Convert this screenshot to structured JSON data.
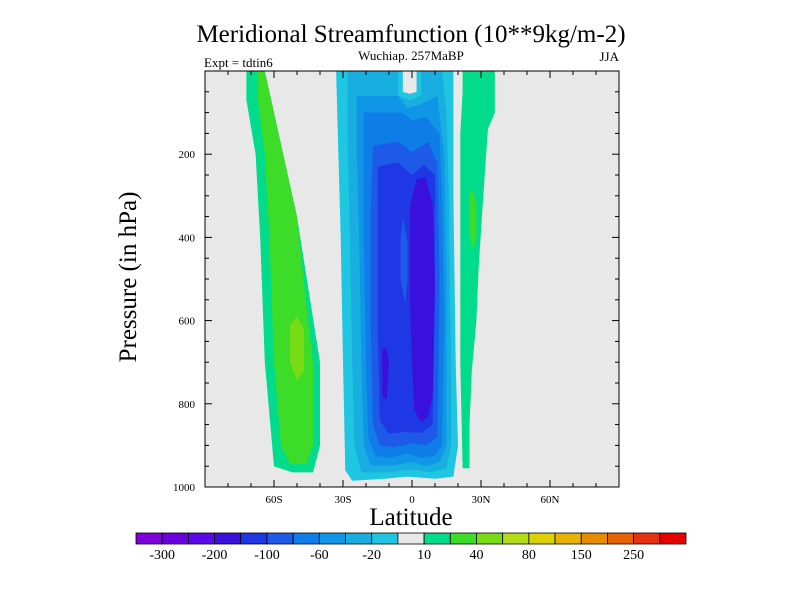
{
  "chart_data": {
    "type": "heatmap",
    "title": "Meridional Streamfunction (10**9kg/m-2)",
    "subtitle": "Wuchiap. 257MaBP",
    "left_annotation": "Expt = tdtin6",
    "right_annotation": "JJA",
    "xlabel": "Latitude",
    "ylabel": "Pressure (in hPa)",
    "xlim": [
      -90,
      90
    ],
    "ylim": [
      0,
      1000
    ],
    "y_inverted": true,
    "x_ticks": [
      {
        "value": -60,
        "label": "60S"
      },
      {
        "value": -30,
        "label": "30S"
      },
      {
        "value": 0,
        "label": "0"
      },
      {
        "value": 30,
        "label": "30N"
      },
      {
        "value": 60,
        "label": "60N"
      }
    ],
    "y_ticks": [
      {
        "value": 200,
        "label": "200"
      },
      {
        "value": 400,
        "label": "400"
      },
      {
        "value": 600,
        "label": "600"
      },
      {
        "value": 800,
        "label": "800"
      },
      {
        "value": 1000,
        "label": "1000"
      }
    ],
    "colorbar": {
      "colors": [
        "#7d00d8",
        "#6a00e0",
        "#5a0ae6",
        "#3a10dc",
        "#1f38e6",
        "#1e5ae8",
        "#0f7de8",
        "#0f96e6",
        "#18aee0",
        "#1ec6e2",
        "#e8e8e8",
        "#00dc8c",
        "#3cdc28",
        "#78dc14",
        "#b4dc14",
        "#dcd200",
        "#e6b400",
        "#e68c00",
        "#e66400",
        "#e63214",
        "#e60000"
      ],
      "labels": [
        {
          "after_index": 0,
          "text": "-300"
        },
        {
          "after_index": 2,
          "text": "-200"
        },
        {
          "after_index": 4,
          "text": "-100"
        },
        {
          "after_index": 6,
          "text": "-60"
        },
        {
          "after_index": 8,
          "text": "-20"
        },
        {
          "after_index": 10,
          "text": "10"
        },
        {
          "after_index": 12,
          "text": "40"
        },
        {
          "after_index": 14,
          "text": "80"
        },
        {
          "after_index": 16,
          "text": "150"
        },
        {
          "after_index": 18,
          "text": "250"
        }
      ]
    },
    "background_color": "#e8e8e8",
    "regions": [
      {
        "name": "sh-cell-outer",
        "color": "#00dc8c",
        "points": [
          [
            -72,
            0
          ],
          [
            -68,
            0
          ],
          [
            -64,
            0
          ],
          [
            -58,
            150
          ],
          [
            -50,
            350
          ],
          [
            -44,
            560
          ],
          [
            -40,
            700
          ],
          [
            -40,
            900
          ],
          [
            -43,
            965
          ],
          [
            -52,
            965
          ],
          [
            -60,
            950
          ],
          [
            -64,
            700
          ],
          [
            -66,
            400
          ],
          [
            -68,
            200
          ],
          [
            -72,
            70
          ]
        ]
      },
      {
        "name": "sh-cell-inner",
        "color": "#3cdc28",
        "points": [
          [
            -67,
            0
          ],
          [
            -64,
            0
          ],
          [
            -58,
            150
          ],
          [
            -50,
            350
          ],
          [
            -46,
            560
          ],
          [
            -43,
            700
          ],
          [
            -43,
            900
          ],
          [
            -46,
            945
          ],
          [
            -53,
            945
          ],
          [
            -57,
            900
          ],
          [
            -60,
            700
          ],
          [
            -62,
            400
          ],
          [
            -64,
            200
          ],
          [
            -67,
            70
          ]
        ]
      },
      {
        "name": "sh-cell-core",
        "color": "#78dc14",
        "points": [
          [
            -50,
            590
          ],
          [
            -47,
            620
          ],
          [
            -47,
            720
          ],
          [
            -50,
            745
          ],
          [
            -53,
            700
          ],
          [
            -53,
            610
          ]
        ]
      },
      {
        "name": "hadley-1",
        "color": "#1ec6e2",
        "points": [
          [
            -33,
            0
          ],
          [
            -4,
            0
          ],
          [
            -4,
            50
          ],
          [
            -1,
            55
          ],
          [
            2,
            50
          ],
          [
            2,
            0
          ],
          [
            18,
            0
          ],
          [
            18,
            300
          ],
          [
            19,
            700
          ],
          [
            20,
            900
          ],
          [
            18,
            975
          ],
          [
            10,
            980
          ],
          [
            -2,
            975
          ],
          [
            -12,
            980
          ],
          [
            -26,
            985
          ],
          [
            -29,
            960
          ],
          [
            -30,
            700
          ],
          [
            -31,
            400
          ],
          [
            -32,
            200
          ]
        ]
      },
      {
        "name": "hadley-2",
        "color": "#18aee0",
        "points": [
          [
            -28,
            0
          ],
          [
            -6,
            0
          ],
          [
            -6,
            60
          ],
          [
            -1,
            70
          ],
          [
            4,
            60
          ],
          [
            4,
            0
          ],
          [
            13,
            0
          ],
          [
            15,
            100
          ],
          [
            16,
            300
          ],
          [
            17,
            700
          ],
          [
            17,
            900
          ],
          [
            15,
            955
          ],
          [
            8,
            965
          ],
          [
            0,
            958
          ],
          [
            -10,
            965
          ],
          [
            -22,
            965
          ],
          [
            -25,
            900
          ],
          [
            -26,
            700
          ],
          [
            -27,
            400
          ],
          [
            -28,
            150
          ]
        ]
      },
      {
        "name": "hadley-3",
        "color": "#0f96e6",
        "points": [
          [
            -24,
            60
          ],
          [
            -6,
            60
          ],
          [
            -2,
            90
          ],
          [
            4,
            80
          ],
          [
            11,
            60
          ],
          [
            14,
            200
          ],
          [
            15,
            500
          ],
          [
            15,
            900
          ],
          [
            12,
            940
          ],
          [
            6,
            950
          ],
          [
            0,
            940
          ],
          [
            -8,
            948
          ],
          [
            -18,
            948
          ],
          [
            -21,
            900
          ],
          [
            -22,
            700
          ],
          [
            -23,
            400
          ],
          [
            -24,
            200
          ]
        ]
      },
      {
        "name": "hadley-4",
        "color": "#0f7de8",
        "points": [
          [
            -21,
            100
          ],
          [
            -4,
            100
          ],
          [
            0,
            120
          ],
          [
            6,
            110
          ],
          [
            12,
            150
          ],
          [
            13,
            300
          ],
          [
            14,
            600
          ],
          [
            13,
            900
          ],
          [
            10,
            925
          ],
          [
            4,
            930
          ],
          [
            -2,
            920
          ],
          [
            -10,
            930
          ],
          [
            -16,
            925
          ],
          [
            -19,
            880
          ],
          [
            -20,
            700
          ],
          [
            -21,
            400
          ]
        ]
      },
      {
        "name": "hadley-5",
        "color": "#1e5ae8",
        "points": [
          [
            -17,
            180
          ],
          [
            -6,
            170
          ],
          [
            0,
            195
          ],
          [
            7,
            170
          ],
          [
            11,
            220
          ],
          [
            12,
            500
          ],
          [
            11,
            880
          ],
          [
            6,
            900
          ],
          [
            0,
            895
          ],
          [
            -8,
            905
          ],
          [
            -14,
            900
          ],
          [
            -17,
            850
          ],
          [
            -18,
            600
          ],
          [
            -18,
            350
          ]
        ]
      },
      {
        "name": "hadley-6",
        "color": "#1f38e6",
        "points": [
          [
            -15,
            230
          ],
          [
            -6,
            220
          ],
          [
            0,
            250
          ],
          [
            5,
            225
          ],
          [
            10,
            250
          ],
          [
            10,
            500
          ],
          [
            9,
            850
          ],
          [
            4,
            870
          ],
          [
            -4,
            868
          ],
          [
            -10,
            872
          ],
          [
            -14,
            840
          ],
          [
            -15,
            600
          ]
        ]
      },
      {
        "name": "hadley-7",
        "color": "#3a10dc",
        "points": [
          [
            -1,
            330
          ],
          [
            2,
            260
          ],
          [
            6,
            255
          ],
          [
            9,
            320
          ],
          [
            10,
            520
          ],
          [
            9,
            780
          ],
          [
            7,
            830
          ],
          [
            4,
            845
          ],
          [
            1,
            815
          ],
          [
            0,
            700
          ],
          [
            -1,
            520
          ]
        ]
      },
      {
        "name": "sh-streak",
        "color": "#3a10dc",
        "points": [
          [
            -13,
            670
          ],
          [
            -11,
            665
          ],
          [
            -10,
            700
          ],
          [
            -11,
            790
          ],
          [
            -13,
            780
          ]
        ]
      },
      {
        "name": "equator-tongue",
        "color": "#1e5ae8",
        "points": [
          [
            -4,
            350
          ],
          [
            -2,
            410
          ],
          [
            -2,
            500
          ],
          [
            -3,
            560
          ],
          [
            -5,
            500
          ],
          [
            -5,
            410
          ]
        ]
      },
      {
        "name": "nh-cell-outer",
        "color": "#00dc8c",
        "points": [
          [
            22,
            0
          ],
          [
            24,
            0
          ],
          [
            36,
            0
          ],
          [
            36,
            100
          ],
          [
            33,
            140
          ],
          [
            31,
            300
          ],
          [
            29,
            470
          ],
          [
            28,
            600
          ],
          [
            26,
            720
          ],
          [
            25,
            850
          ],
          [
            25,
            955
          ],
          [
            22,
            955
          ],
          [
            21,
            700
          ],
          [
            21,
            400
          ],
          [
            21,
            150
          ],
          [
            22,
            50
          ]
        ]
      },
      {
        "name": "nh-cell-inner",
        "color": "#3cdc28",
        "points": [
          [
            26,
            280
          ],
          [
            28,
            320
          ],
          [
            28,
            400
          ],
          [
            26,
            430
          ],
          [
            25,
            380
          ],
          [
            25,
            300
          ]
        ]
      }
    ]
  }
}
